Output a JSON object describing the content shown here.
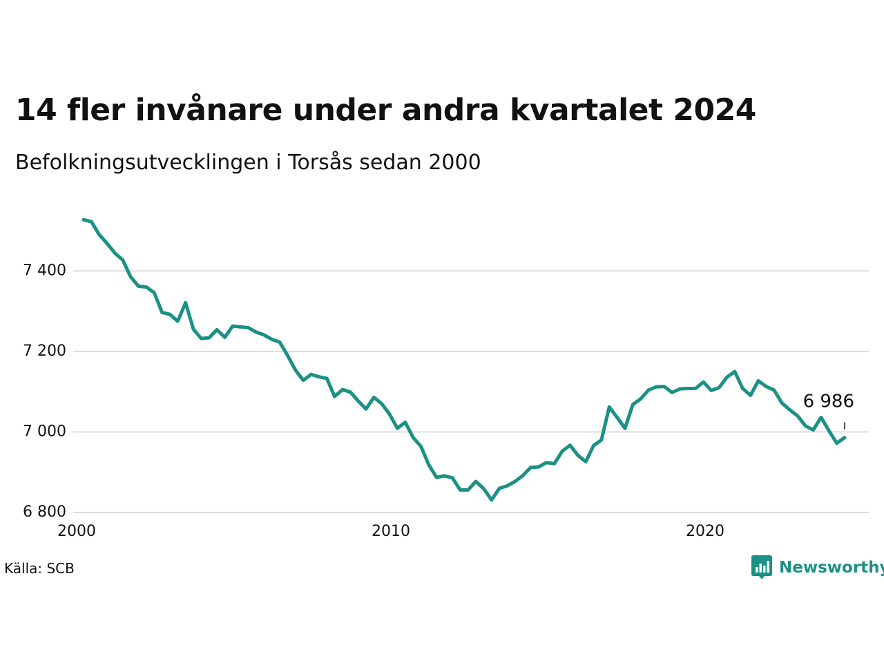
{
  "title": "14 fler invånare under andra kvartalet 2024",
  "subtitle": "Befolkningsutvecklingen i Torsås sedan 2000",
  "source": "Källa: SCB",
  "brand": {
    "name": "Newsworthy",
    "icon": "newsworthy-logo-icon",
    "color": "#1a9184"
  },
  "colors": {
    "line": "#1a9184",
    "grid": "#dddddd",
    "text": "#111111"
  },
  "chart_data": {
    "type": "line",
    "title": "14 fler invånare under andra kvartalet 2024",
    "subtitle": "Befolkningsutvecklingen i Torsås sedan 2000",
    "xlabel": "",
    "ylabel": "",
    "x_ticks": [
      "2000",
      "2010",
      "2020"
    ],
    "y_ticks": [
      "6 800",
      "7 000",
      "7 200",
      "7 400"
    ],
    "y_tick_values": [
      6800,
      7000,
      7200,
      7400
    ],
    "ylim": [
      6800,
      7560
    ],
    "grid": true,
    "legend": "none",
    "frequency": "quarterly",
    "first_period": "2000 Q1",
    "last_period": "2024 Q2",
    "end_label": "6 986",
    "series": [
      {
        "values": [
          7527,
          7522,
          7490,
          7468,
          7444,
          7427,
          7385,
          7362,
          7360,
          7346,
          7297,
          7292,
          7275,
          7321,
          7255,
          7232,
          7234,
          7254,
          7235,
          7263,
          7261,
          7259,
          7248,
          7241,
          7230,
          7223,
          7190,
          7154,
          7128,
          7143,
          7137,
          7133,
          7088,
          7105,
          7099,
          7077,
          7057,
          7086,
          7070,
          7044,
          7009,
          7024,
          6986,
          6964,
          6918,
          6887,
          6891,
          6886,
          6856,
          6856,
          6877,
          6859,
          6831,
          6860,
          6866,
          6877,
          6892,
          6912,
          6913,
          6924,
          6921,
          6952,
          6967,
          6942,
          6926,
          6966,
          6980,
          7062,
          7036,
          7009,
          7068,
          7082,
          7104,
          7112,
          7113,
          7098,
          7107,
          7108,
          7108,
          7124,
          7103,
          7110,
          7136,
          7150,
          7108,
          7091,
          7127,
          7113,
          7104,
          7072,
          7055,
          7040,
          7015,
          7005,
          7036,
          7003,
          6972,
          6986
        ]
      }
    ]
  }
}
